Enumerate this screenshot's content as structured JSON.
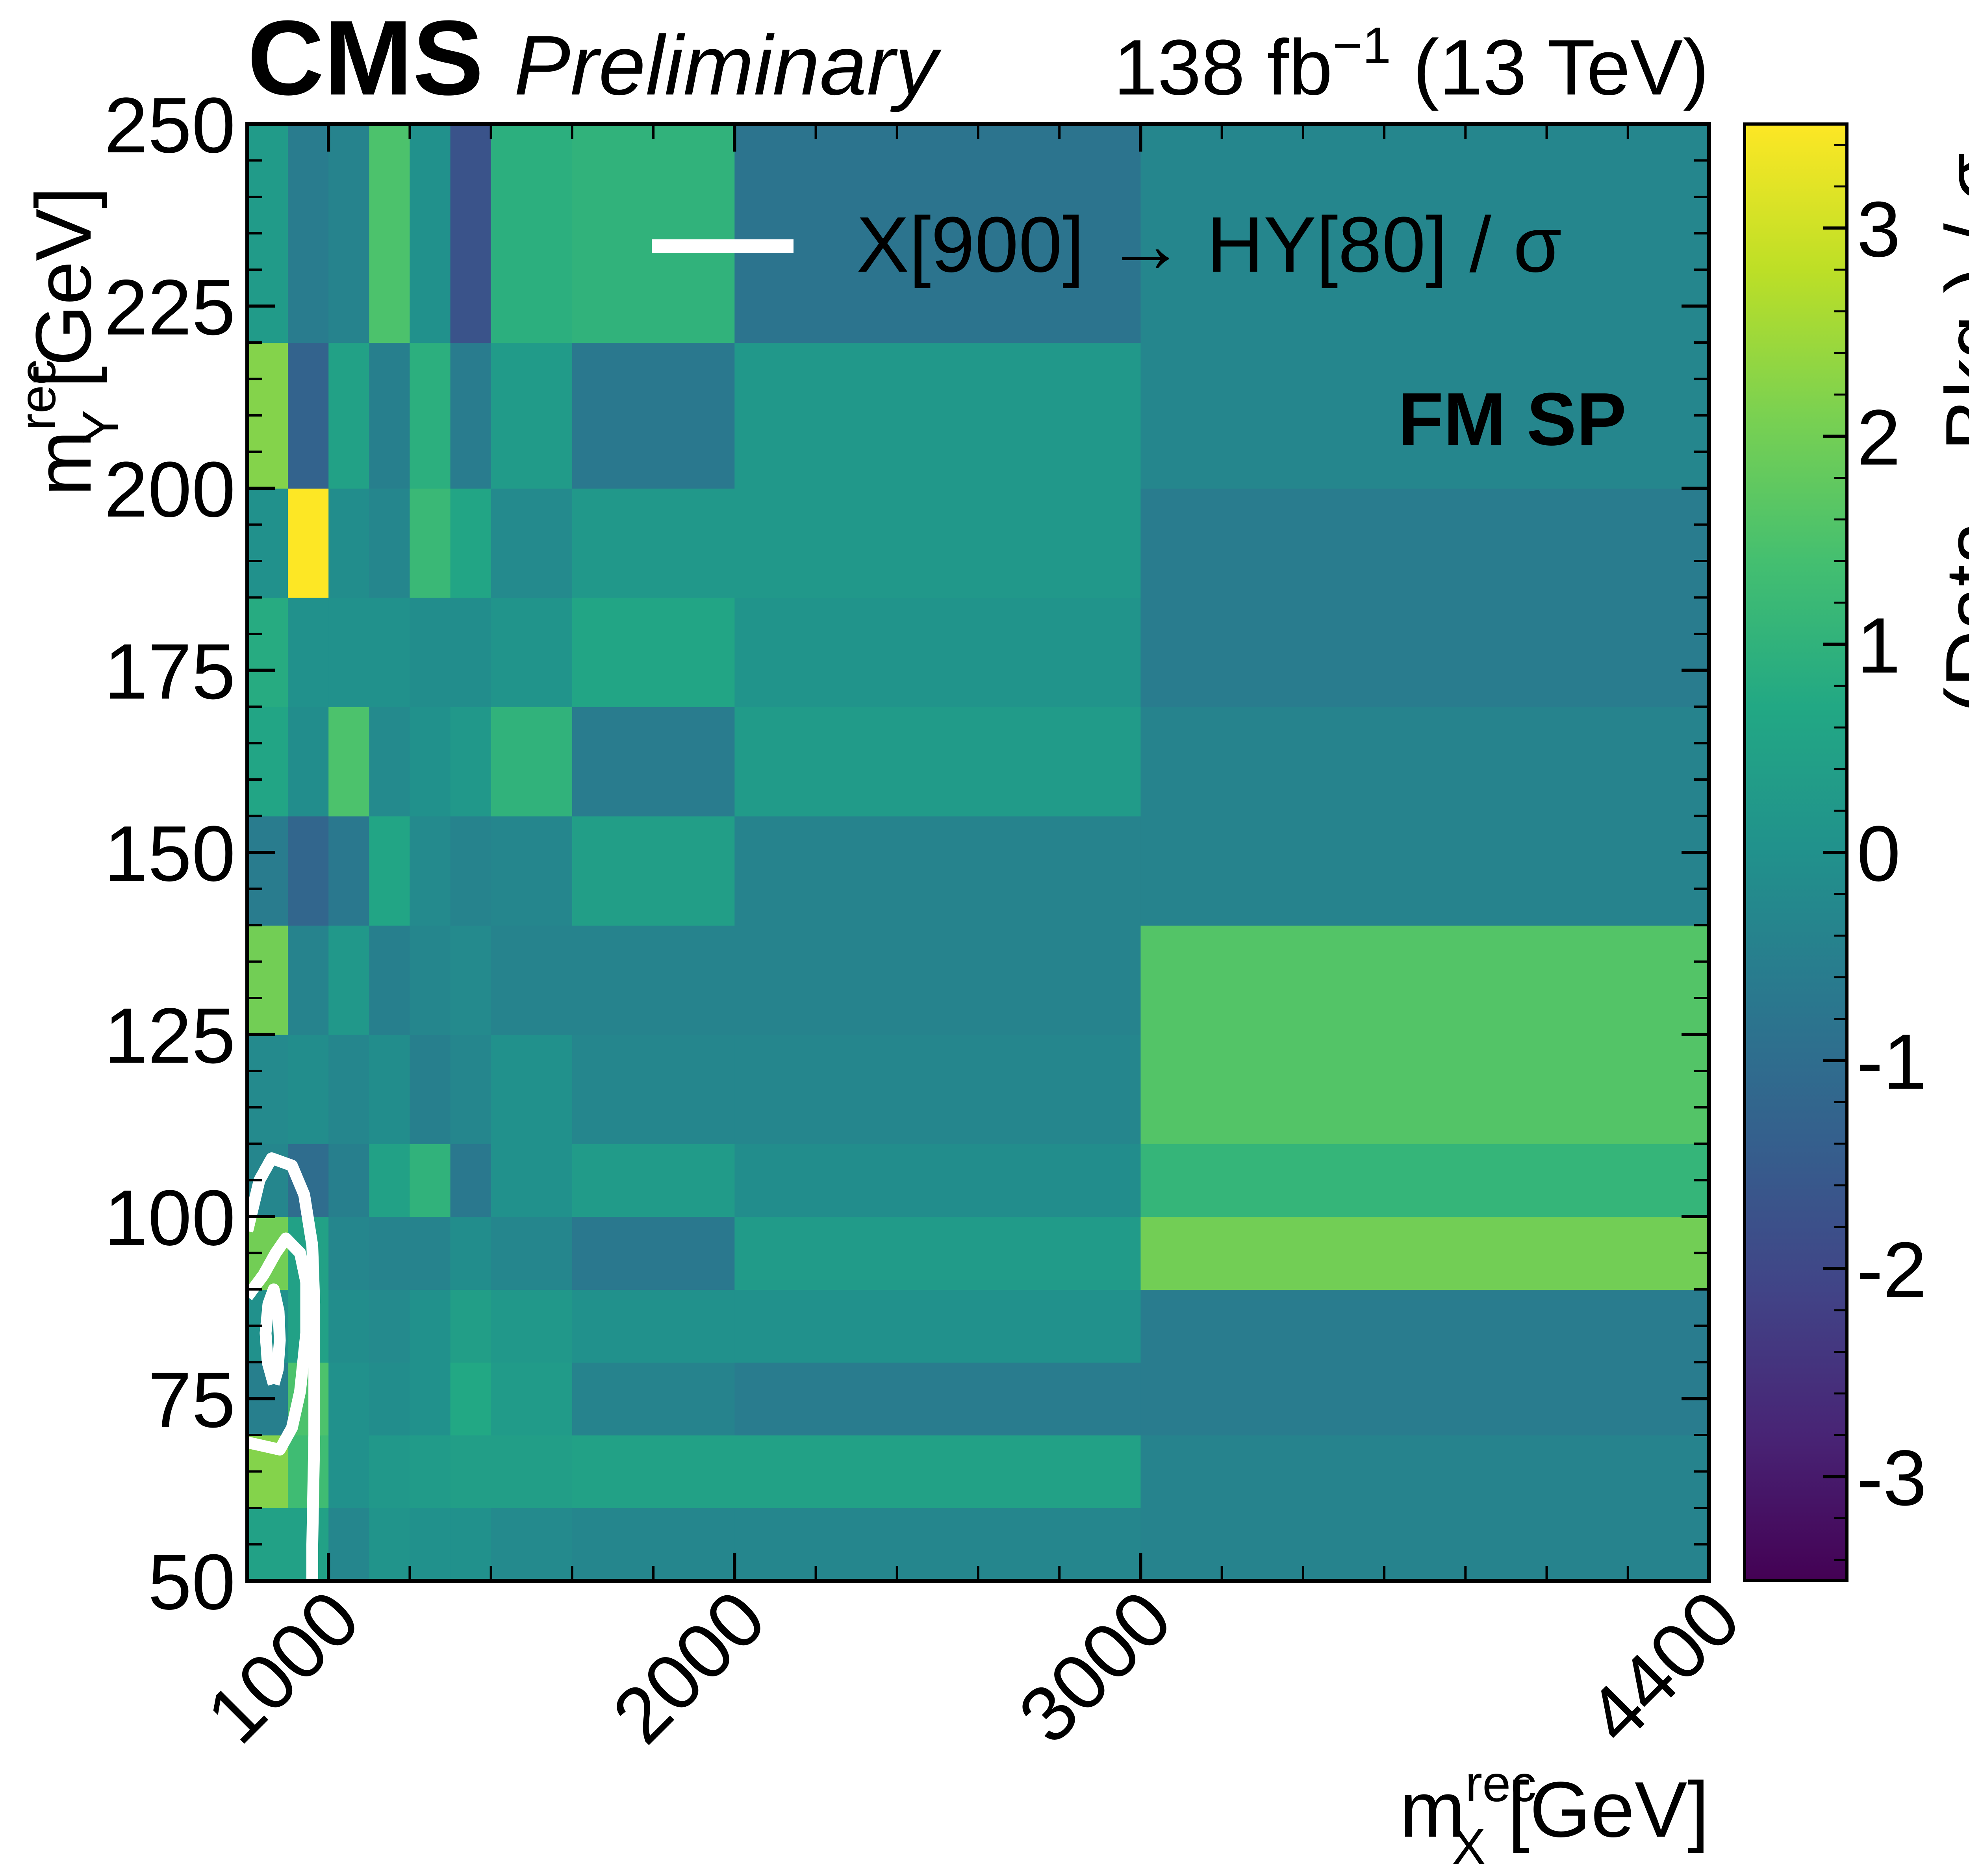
{
  "header": {
    "experiment": "CMS",
    "status": "Preliminary",
    "lumi_text": "138 fb",
    "lumi_exp": "−1",
    "energy_text": " (13 TeV)"
  },
  "chart_data": {
    "type": "heatmap",
    "xlabel": {
      "main": "m",
      "sup": "rec",
      "sub": "X",
      "unit": " [GeV]"
    },
    "ylabel": {
      "main": "m",
      "sup": "rec",
      "sub": "Y",
      "unit": " [GeV]"
    },
    "colorbar_label": "(Data - Bkg.) / σ",
    "region_label": "FM SP",
    "legend": {
      "label": "X[900] → HY[80] / σ",
      "placement": "top-right",
      "color": "#ffffff"
    },
    "colormap": "viridis",
    "zlim": [
      -3.5,
      3.5
    ],
    "x_bin_edges": [
      800,
      900,
      1000,
      1100,
      1200,
      1300,
      1400,
      1600,
      2000,
      3000,
      4400
    ],
    "xlim": [
      800,
      4400
    ],
    "xticks": [
      1000,
      2000,
      3000,
      4400
    ],
    "xtick_labels": [
      "1000",
      "2000",
      "3000",
      "4400"
    ],
    "y_bin_edges": [
      50,
      60,
      70,
      80,
      90,
      100,
      110,
      125,
      140,
      155,
      170,
      185,
      200,
      220,
      250
    ],
    "ylim": [
      50,
      250
    ],
    "yticks": [
      50,
      75,
      100,
      125,
      150,
      175,
      200,
      225,
      250
    ],
    "ytick_labels": [
      "50",
      "75",
      "100",
      "125",
      "150",
      "175",
      "200",
      "225",
      "250"
    ],
    "cticks": [
      -3,
      -2,
      -1,
      0,
      1,
      2,
      3
    ],
    "ctick_labels": [
      "-3",
      "-2",
      "-1",
      "0",
      "1",
      "2",
      "3"
    ],
    "z_values": [
      [
        0.5,
        0.5,
        -0.3,
        0.1,
        0.0,
        0.0,
        -0.2,
        -0.3,
        -0.3,
        -0.4
      ],
      [
        2.2,
        1.3,
        0.0,
        0.2,
        0.3,
        0.4,
        0.4,
        0.5,
        0.5,
        -0.4
      ],
      [
        -0.5,
        1.5,
        0.0,
        -0.1,
        0.0,
        0.7,
        0.3,
        -0.4,
        -0.6,
        -0.6
      ],
      [
        0.0,
        0.5,
        -0.1,
        -0.2,
        0.0,
        0.4,
        0.2,
        0.0,
        0.0,
        -0.6
      ],
      [
        2.0,
        0.5,
        -0.3,
        -0.4,
        -0.4,
        -0.1,
        -0.3,
        -0.7,
        0.3,
        2.0
      ],
      [
        -0.3,
        -1.0,
        -0.5,
        0.5,
        1.0,
        -0.7,
        0.0,
        0.3,
        -0.1,
        1.1
      ],
      [
        -0.2,
        -0.1,
        -0.3,
        -0.1,
        -0.5,
        -0.3,
        0.0,
        -0.3,
        -0.3,
        1.6
      ],
      [
        2.0,
        -0.4,
        0.2,
        -0.5,
        -0.3,
        -0.2,
        -0.4,
        -0.4,
        -0.4,
        1.6
      ],
      [
        -0.6,
        -1.2,
        -0.7,
        0.6,
        -0.2,
        -0.4,
        -0.3,
        0.4,
        -0.4,
        -0.4
      ],
      [
        0.6,
        -0.1,
        1.5,
        -0.2,
        0.0,
        0.2,
        1.0,
        -0.6,
        0.3,
        -0.4
      ],
      [
        0.8,
        0.0,
        0.0,
        0.0,
        -0.1,
        -0.1,
        0.1,
        0.6,
        0.1,
        -0.6
      ],
      [
        0.0,
        3.5,
        -0.1,
        -0.3,
        1.2,
        0.6,
        -0.2,
        0.2,
        0.2,
        -0.6
      ],
      [
        2.2,
        -1.3,
        0.5,
        -0.5,
        0.9,
        -0.6,
        0.3,
        -0.7,
        0.2,
        -0.3
      ],
      [
        0.3,
        -0.6,
        -0.4,
        1.5,
        0.0,
        -1.7,
        0.9,
        1.0,
        -0.8,
        -0.3
      ]
    ],
    "contours": [
      {
        "level": "outer",
        "points": [
          [
            800,
            98
          ],
          [
            830,
            105
          ],
          [
            860,
            108
          ],
          [
            910,
            107
          ],
          [
            940,
            103
          ],
          [
            960,
            96
          ],
          [
            965,
            88
          ],
          [
            965,
            70
          ],
          [
            960,
            55
          ],
          [
            960,
            50
          ]
        ]
      },
      {
        "level": "middle",
        "points": [
          [
            800,
            69
          ],
          [
            880,
            68
          ],
          [
            910,
            71
          ],
          [
            930,
            76
          ],
          [
            945,
            84
          ],
          [
            945,
            91
          ],
          [
            930,
            95
          ],
          [
            895,
            97
          ],
          [
            870,
            95
          ],
          [
            840,
            92
          ],
          [
            800,
            89
          ]
        ]
      },
      {
        "level": "inner",
        "points": [
          [
            865,
            77
          ],
          [
            850,
            80
          ],
          [
            845,
            84
          ],
          [
            852,
            88
          ],
          [
            865,
            90
          ],
          [
            877,
            87
          ],
          [
            880,
            83
          ],
          [
            875,
            79
          ],
          [
            865,
            77
          ]
        ]
      }
    ]
  }
}
